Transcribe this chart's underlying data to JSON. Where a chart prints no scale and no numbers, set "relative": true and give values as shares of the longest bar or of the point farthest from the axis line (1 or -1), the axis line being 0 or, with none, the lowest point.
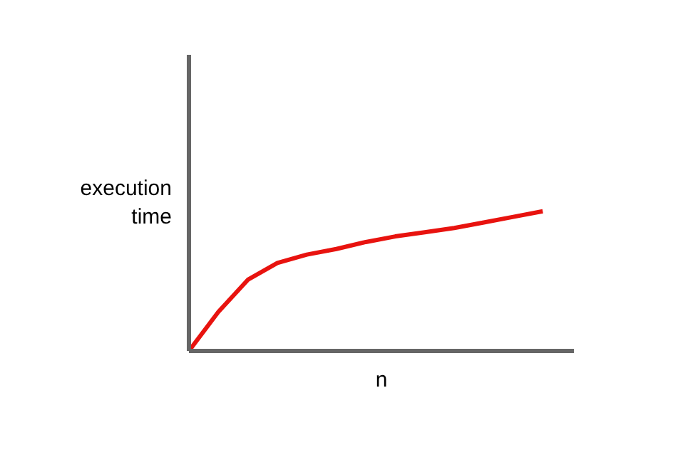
{
  "chart_data": {
    "type": "line",
    "relative": true,
    "xlabel": "n",
    "ylabel": "execution time",
    "categories": [
      null,
      null,
      null,
      null,
      null,
      null,
      null,
      null,
      null,
      null,
      null,
      null,
      null
    ],
    "series": [
      {
        "color": "#e8130f",
        "values": [
          0,
          0.28,
          0.51,
          0.63,
          0.69,
          0.73,
          0.78,
          0.82,
          0.85,
          0.88,
          0.92,
          0.96,
          1.0
        ]
      }
    ],
    "marker": "none",
    "line_style": "solid",
    "tick_labels": false
  }
}
